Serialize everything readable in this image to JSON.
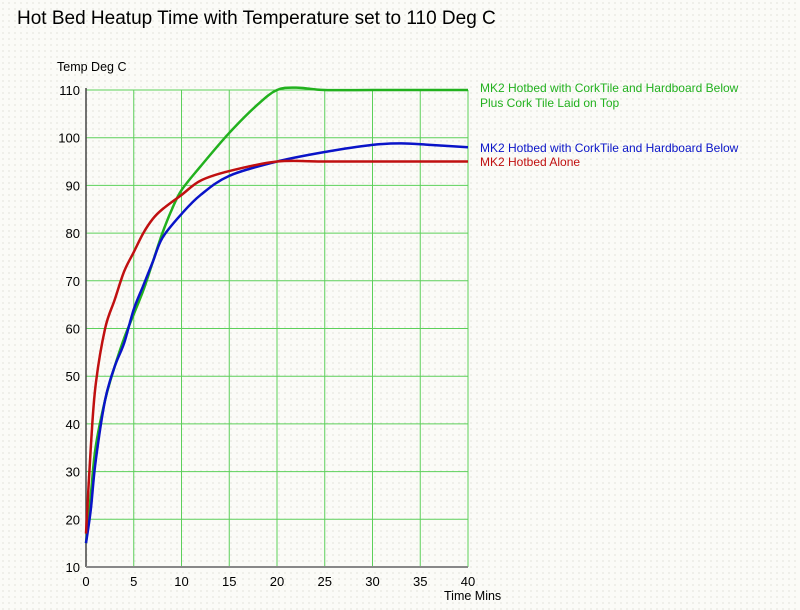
{
  "chart_data": {
    "type": "line",
    "title": "Hot Bed Heatup Time with Temperature set to 110 Deg C",
    "xlabel": "Time Mins",
    "ylabel": "Temp Deg C",
    "xlim": [
      0,
      40
    ],
    "ylim": [
      10,
      110
    ],
    "xticks": [
      "0",
      "5",
      "10",
      "15",
      "20",
      "25",
      "30",
      "35",
      "40"
    ],
    "yticks": [
      "10",
      "20",
      "30",
      "40",
      "50",
      "60",
      "70",
      "80",
      "90",
      "100",
      "110"
    ],
    "grid": true,
    "legend_position": "right",
    "series": [
      {
        "name": "MK2 Hotbed with CorkTile and Hardboard Below",
        "name_line2": "Plus Cork Tile Laid on Top",
        "color": "#22b11e",
        "x": [
          0,
          0.5,
          1,
          2,
          3,
          4,
          5,
          6,
          7,
          8,
          9,
          10,
          12,
          15,
          18,
          20,
          22,
          25,
          30,
          35,
          40
        ],
        "y": [
          15,
          25,
          35,
          45,
          52,
          58,
          63,
          68,
          74,
          80,
          85,
          89,
          94,
          101,
          107,
          110,
          110.5,
          110,
          110,
          110,
          110
        ]
      },
      {
        "name": "MK2 Hotbed with CorkTile and Hardboard Below",
        "color": "#0a14c8",
        "x": [
          0,
          0.5,
          1,
          2,
          3,
          4,
          5,
          6,
          7,
          8,
          10,
          12,
          15,
          20,
          25,
          30,
          33,
          36,
          40
        ],
        "y": [
          15,
          22,
          32,
          45,
          52,
          57,
          64,
          69,
          74,
          79,
          84,
          88,
          92,
          95,
          97,
          98.5,
          98.8,
          98.5,
          98
        ]
      },
      {
        "name": "MK2 Hotbed Alone",
        "color": "#c01010",
        "x": [
          0,
          0.5,
          1,
          2,
          3,
          4,
          5,
          6,
          7,
          8,
          10,
          12,
          15,
          20,
          25,
          30,
          35,
          40
        ],
        "y": [
          17,
          35,
          48,
          60,
          66,
          72,
          76,
          80,
          83,
          85,
          88,
          91,
          93,
          95,
          95,
          95,
          95,
          95
        ]
      }
    ]
  }
}
